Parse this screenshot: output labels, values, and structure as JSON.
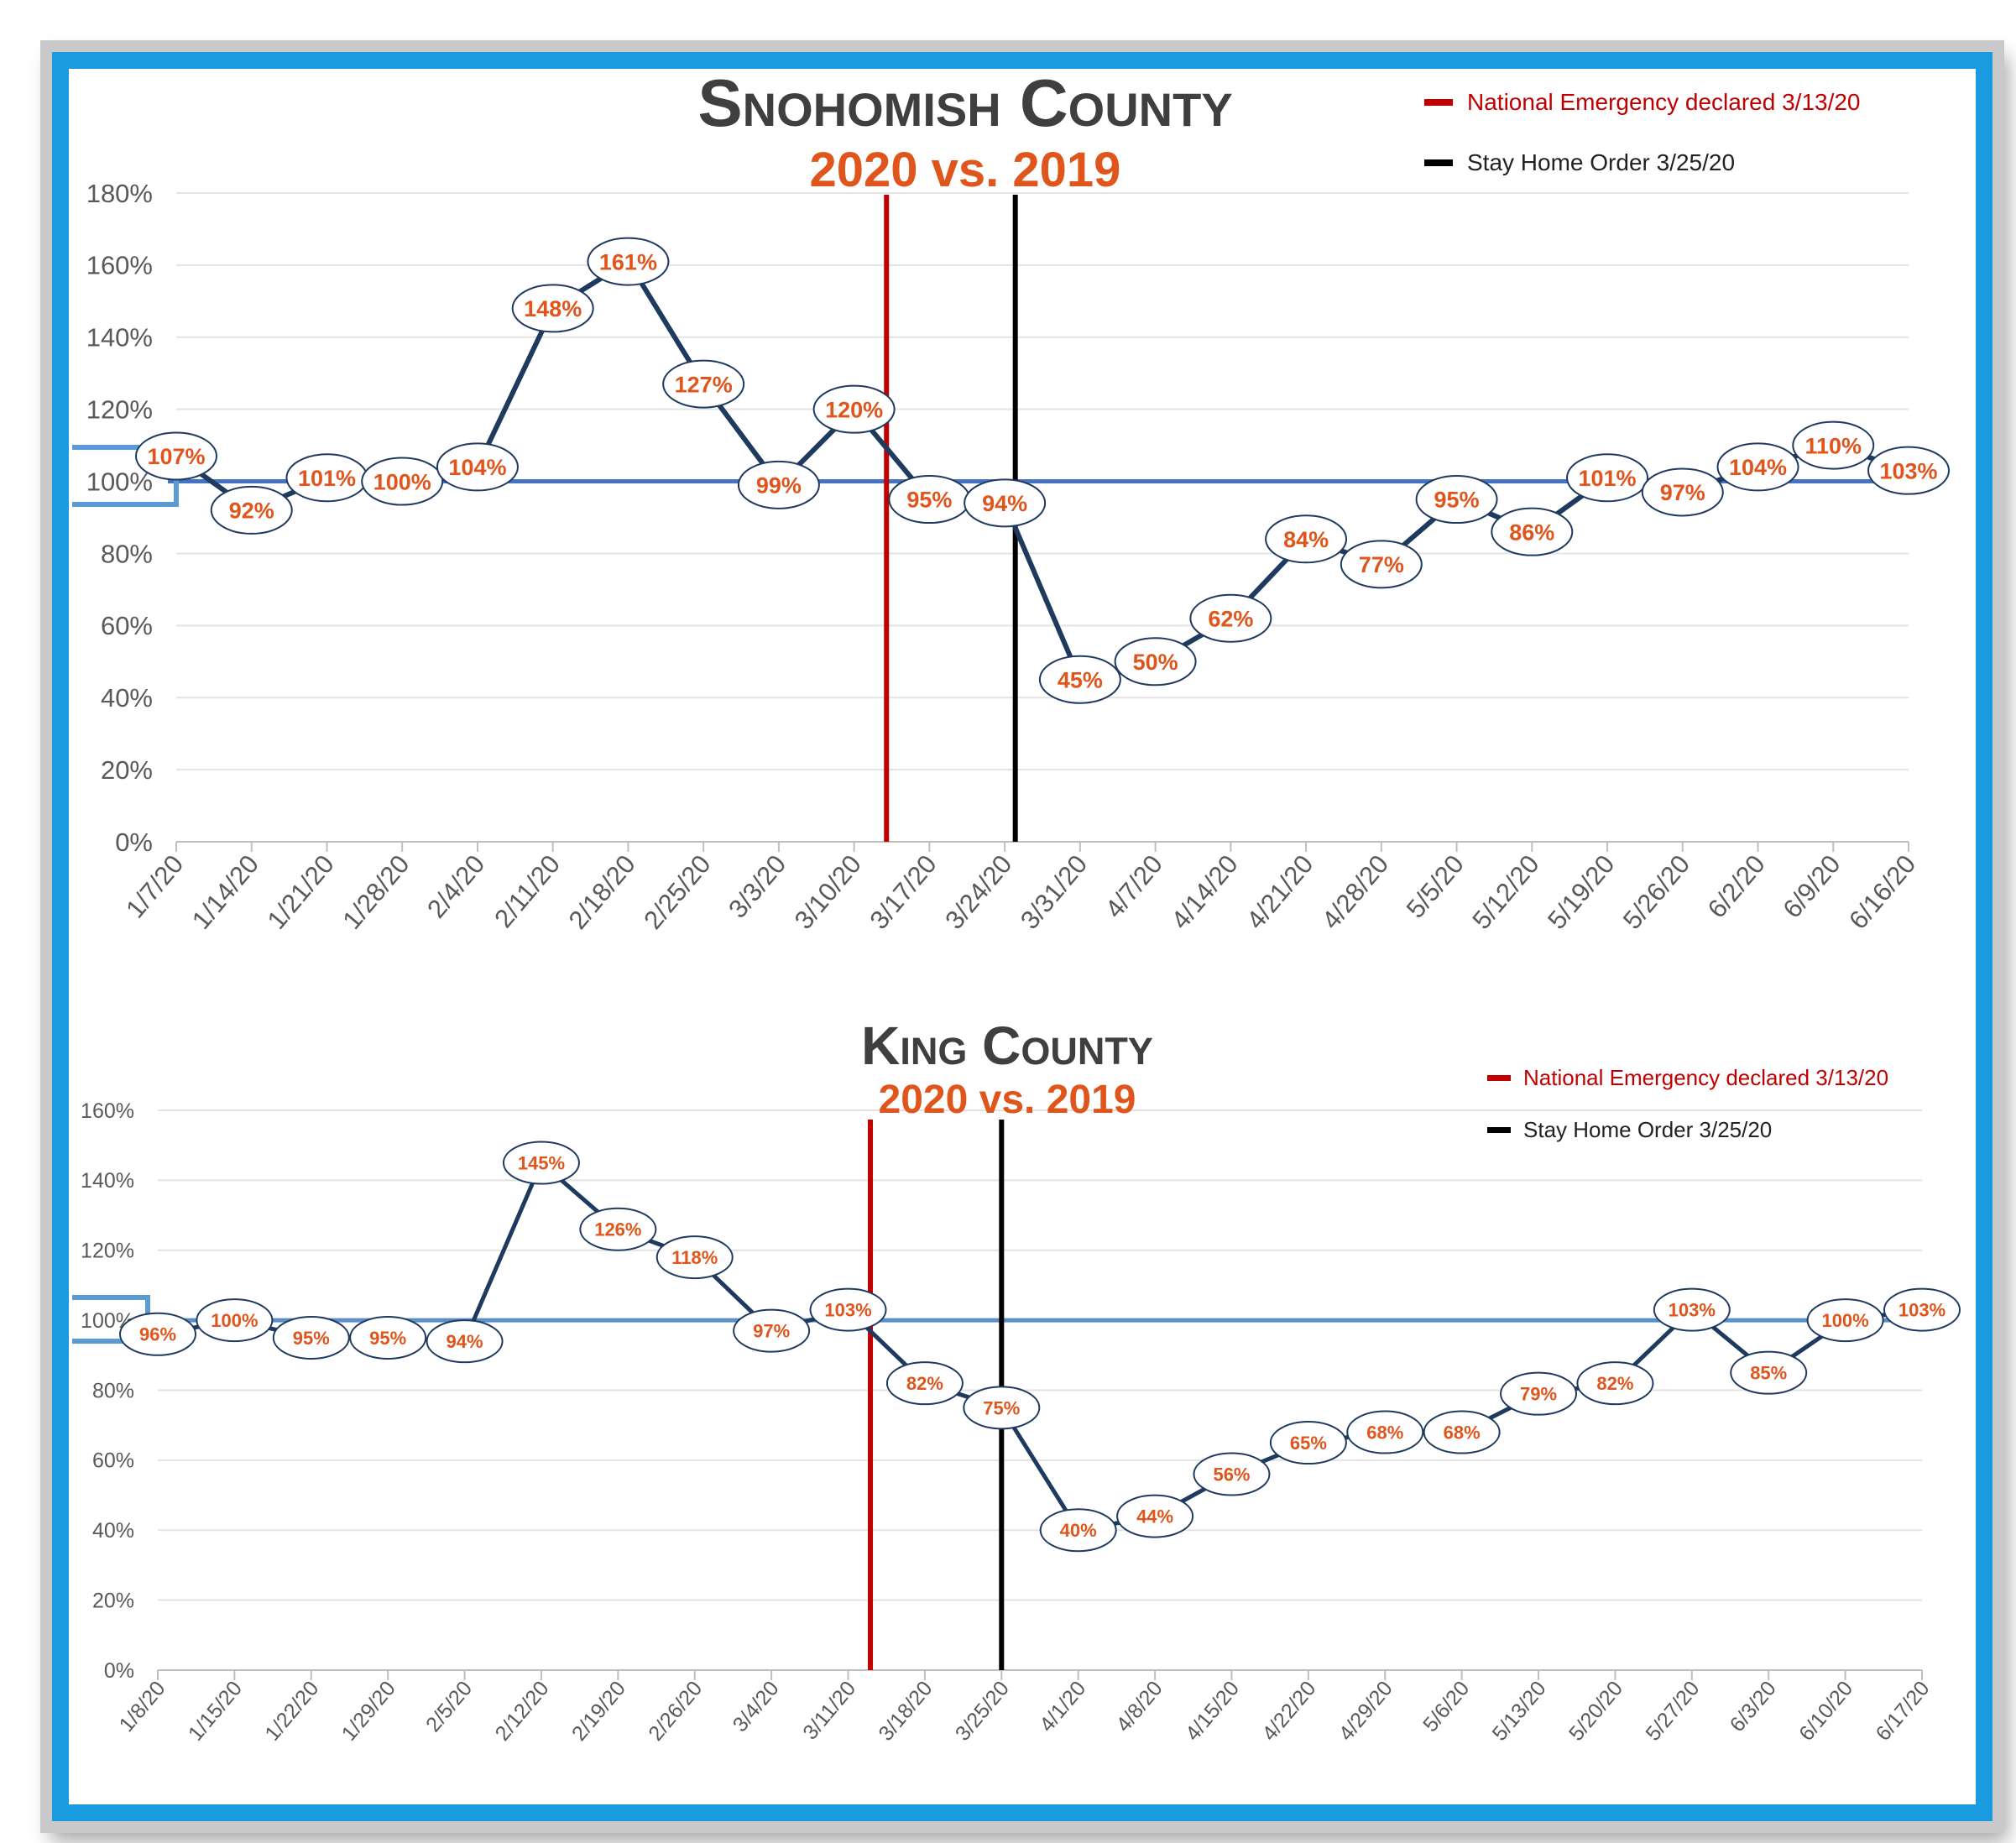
{
  "chart_data": [
    {
      "type": "line",
      "title": "Snohomish County",
      "subtitle": "2020 vs. 2019",
      "x": [
        "1/7/20",
        "1/14/20",
        "1/21/20",
        "1/28/20",
        "2/4/20",
        "2/11/20",
        "2/18/20",
        "2/25/20",
        "3/3/20",
        "3/10/20",
        "3/17/20",
        "3/24/20",
        "3/31/20",
        "4/7/20",
        "4/14/20",
        "4/21/20",
        "4/28/20",
        "5/5/20",
        "5/12/20",
        "5/19/20",
        "5/26/20",
        "6/2/20",
        "6/9/20",
        "6/16/20"
      ],
      "values": [
        107,
        92,
        101,
        100,
        104,
        148,
        161,
        127,
        99,
        120,
        95,
        94,
        45,
        50,
        62,
        84,
        77,
        95,
        86,
        101,
        97,
        104,
        110,
        103
      ],
      "data_labels": [
        "107%",
        "92%",
        "101%",
        "100%",
        "104%",
        "148%",
        "161%",
        "127%",
        "99%",
        "120%",
        "95%",
        "94%",
        "45%",
        "50%",
        "62%",
        "84%",
        "77%",
        "95%",
        "86%",
        "101%",
        "97%",
        "104%",
        "110%",
        "103%"
      ],
      "yticks": [
        "0%",
        "20%",
        "40%",
        "60%",
        "80%",
        "100%",
        "120%",
        "140%",
        "160%",
        "180%"
      ],
      "ylim": [
        0,
        180
      ],
      "baseline": 100,
      "grid": true,
      "markers": [
        {
          "label": "National Emergency declared 3/13/20",
          "x_value": 9.43,
          "color": "#c00000"
        },
        {
          "label": "Stay Home Order 3/25/20",
          "x_value": 11.14,
          "color": "#000000"
        }
      ],
      "legend_position": "top-right",
      "colors": {
        "line": "#1f3a5f",
        "baseline": "#4472c4",
        "label": "#e0551b"
      }
    },
    {
      "type": "line",
      "title": "King County",
      "subtitle": "2020 vs. 2019",
      "x": [
        "1/8/20",
        "1/15/20",
        "1/22/20",
        "1/29/20",
        "2/5/20",
        "2/12/20",
        "2/19/20",
        "2/26/20",
        "3/4/20",
        "3/11/20",
        "3/18/20",
        "3/25/20",
        "4/1/20",
        "4/8/20",
        "4/15/20",
        "4/22/20",
        "4/29/20",
        "5/6/20",
        "5/13/20",
        "5/20/20",
        "5/27/20",
        "6/3/20",
        "6/10/20",
        "6/17/20"
      ],
      "values": [
        96,
        100,
        95,
        95,
        94,
        145,
        126,
        118,
        97,
        103,
        82,
        75,
        40,
        44,
        56,
        65,
        68,
        68,
        79,
        82,
        103,
        85,
        100,
        103
      ],
      "data_labels": [
        "96%",
        "100%",
        "95%",
        "95%",
        "94%",
        "145%",
        "126%",
        "118%",
        "97%",
        "103%",
        "82%",
        "75%",
        "40%",
        "44%",
        "56%",
        "65%",
        "68%",
        "68%",
        "79%",
        "82%",
        "103%",
        "85%",
        "100%",
        "103%"
      ],
      "yticks": [
        "0%",
        "20%",
        "40%",
        "60%",
        "80%",
        "100%",
        "120%",
        "140%",
        "160%"
      ],
      "ylim": [
        0,
        160
      ],
      "baseline": 100,
      "grid": true,
      "markers": [
        {
          "label": "National Emergency declared 3/13/20",
          "x_value": 9.29,
          "color": "#c00000"
        },
        {
          "label": "Stay Home Order 3/25/20",
          "x_value": 11.0,
          "color": "#000000"
        }
      ],
      "legend_position": "top-right",
      "colors": {
        "line": "#1f3a5f",
        "baseline": "#5b8fc9",
        "label": "#e0551b"
      }
    }
  ]
}
